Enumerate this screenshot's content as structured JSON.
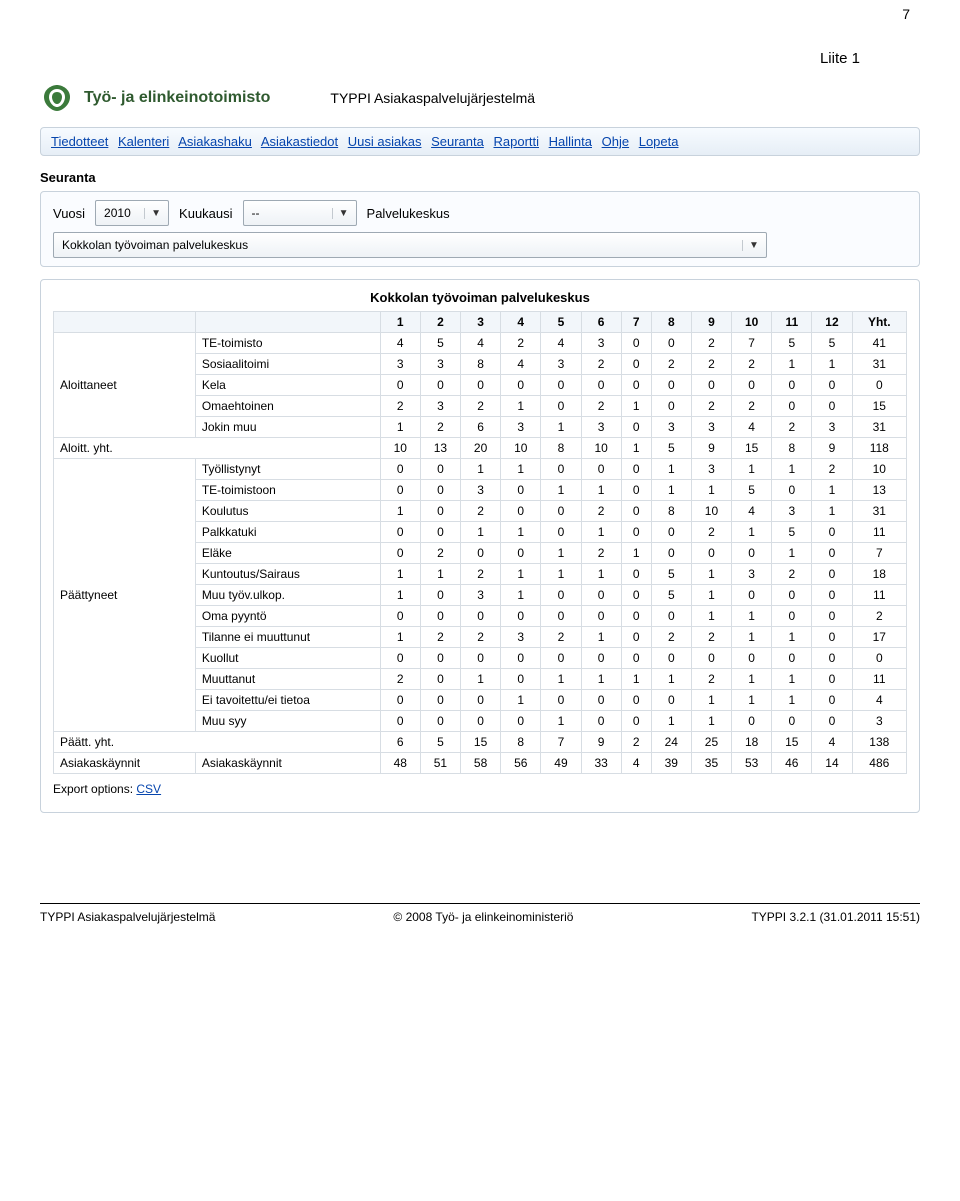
{
  "page_number": "7",
  "attachment_label": "Liite 1",
  "logo_text": "Työ- ja elinkeinotoimisto",
  "system_title": "TYPPI Asiakaspalvelujärjestelmä",
  "nav": [
    "Tiedotteet",
    "Kalenteri",
    "Asiakashaku",
    "Asiakastiedot",
    "Uusi asiakas",
    "Seuranta",
    "Raportti",
    "Hallinta",
    "Ohje",
    "Lopeta"
  ],
  "section_title": "Seuranta",
  "filters": {
    "year_label": "Vuosi",
    "year_value": "2010",
    "month_label": "Kuukausi",
    "month_value": "--",
    "center_label": "Palvelukeskus",
    "center_value": "Kokkolan työvoiman palvelukeskus"
  },
  "panel_title": "Kokkolan työvoiman palvelukeskus",
  "columns": [
    "1",
    "2",
    "3",
    "4",
    "5",
    "6",
    "7",
    "8",
    "9",
    "10",
    "11",
    "12",
    "Yht."
  ],
  "groups": [
    {
      "label": "Aloittaneet",
      "rows": [
        {
          "label": "TE-toimisto",
          "values": [
            4,
            5,
            4,
            2,
            4,
            3,
            0,
            0,
            2,
            7,
            5,
            5,
            41
          ]
        },
        {
          "label": "Sosiaalitoimi",
          "values": [
            3,
            3,
            8,
            4,
            3,
            2,
            0,
            2,
            2,
            2,
            1,
            1,
            31
          ]
        },
        {
          "label": "Kela",
          "values": [
            0,
            0,
            0,
            0,
            0,
            0,
            0,
            0,
            0,
            0,
            0,
            0,
            0
          ]
        },
        {
          "label": "Omaehtoinen",
          "values": [
            2,
            3,
            2,
            1,
            0,
            2,
            1,
            0,
            2,
            2,
            0,
            0,
            15
          ]
        },
        {
          "label": "Jokin muu",
          "values": [
            1,
            2,
            6,
            3,
            1,
            3,
            0,
            3,
            3,
            4,
            2,
            3,
            31
          ]
        }
      ],
      "subtotal": {
        "label": "Aloitt. yht.",
        "values": [
          10,
          13,
          20,
          10,
          8,
          10,
          1,
          5,
          9,
          15,
          8,
          9,
          118
        ]
      }
    },
    {
      "label": "Päättyneet",
      "rows": [
        {
          "label": "Työllistynyt",
          "values": [
            0,
            0,
            1,
            1,
            0,
            0,
            0,
            1,
            3,
            1,
            1,
            2,
            10
          ]
        },
        {
          "label": "TE-toimistoon",
          "values": [
            0,
            0,
            3,
            0,
            1,
            1,
            0,
            1,
            1,
            5,
            0,
            1,
            13
          ]
        },
        {
          "label": "Koulutus",
          "values": [
            1,
            0,
            2,
            0,
            0,
            2,
            0,
            8,
            10,
            4,
            3,
            1,
            31
          ]
        },
        {
          "label": "Palkkatuki",
          "values": [
            0,
            0,
            1,
            1,
            0,
            1,
            0,
            0,
            2,
            1,
            5,
            0,
            11
          ]
        },
        {
          "label": "Eläke",
          "values": [
            0,
            2,
            0,
            0,
            1,
            2,
            1,
            0,
            0,
            0,
            1,
            0,
            7
          ]
        },
        {
          "label": "Kuntoutus/Sairaus",
          "values": [
            1,
            1,
            2,
            1,
            1,
            1,
            0,
            5,
            1,
            3,
            2,
            0,
            18
          ]
        },
        {
          "label": "Muu työv.ulkop.",
          "values": [
            1,
            0,
            3,
            1,
            0,
            0,
            0,
            5,
            1,
            0,
            0,
            0,
            11
          ]
        },
        {
          "label": "Oma pyyntö",
          "values": [
            0,
            0,
            0,
            0,
            0,
            0,
            0,
            0,
            1,
            1,
            0,
            0,
            2
          ]
        },
        {
          "label": "Tilanne ei muuttunut",
          "values": [
            1,
            2,
            2,
            3,
            2,
            1,
            0,
            2,
            2,
            1,
            1,
            0,
            17
          ]
        },
        {
          "label": "Kuollut",
          "values": [
            0,
            0,
            0,
            0,
            0,
            0,
            0,
            0,
            0,
            0,
            0,
            0,
            0
          ]
        },
        {
          "label": "Muuttanut",
          "values": [
            2,
            0,
            1,
            0,
            1,
            1,
            1,
            1,
            2,
            1,
            1,
            0,
            11
          ]
        },
        {
          "label": "Ei tavoitettu/ei tietoa",
          "values": [
            0,
            0,
            0,
            1,
            0,
            0,
            0,
            0,
            1,
            1,
            1,
            0,
            4
          ]
        },
        {
          "label": "Muu syy",
          "values": [
            0,
            0,
            0,
            0,
            1,
            0,
            0,
            1,
            1,
            0,
            0,
            0,
            3
          ]
        }
      ],
      "subtotal": {
        "label": "Päätt. yht.",
        "values": [
          6,
          5,
          15,
          8,
          7,
          9,
          2,
          24,
          25,
          18,
          15,
          4,
          138
        ]
      }
    },
    {
      "label": "Asiakaskäynnit",
      "rows": [
        {
          "label": "Asiakaskäynnit",
          "values": [
            48,
            51,
            58,
            56,
            49,
            33,
            4,
            39,
            35,
            53,
            46,
            14,
            486
          ]
        }
      ]
    }
  ],
  "export_label": "Export options:",
  "export_link": "CSV",
  "footer": {
    "left": "TYPPI Asiakaspalvelujärjestelmä",
    "center": "© 2008 Työ- ja elinkeinoministeriö",
    "right": "TYPPI 3.2.1 (31.01.2011 15:51)"
  },
  "style": {
    "link_color": "#0645ad",
    "border_color": "#c8d2dc",
    "cell_border": "#d7dde3",
    "header_bg": "#f2f6fa",
    "panel_bg": "#fafcff",
    "logo_color": "#2f5a2f"
  }
}
